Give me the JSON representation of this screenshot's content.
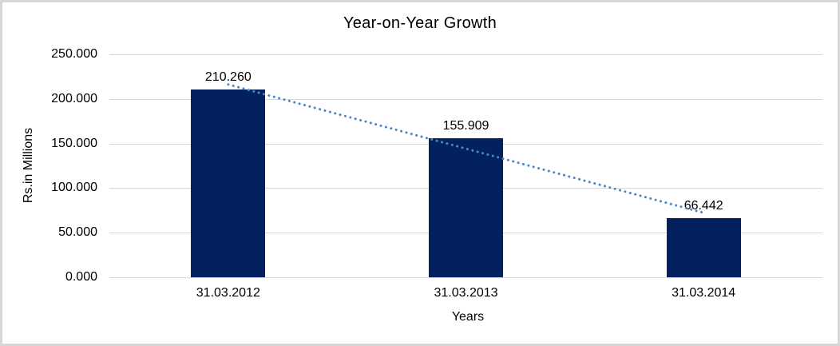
{
  "chart_data": {
    "type": "bar",
    "title": "Year-on-Year Growth",
    "xlabel": "Years",
    "ylabel": "Rs.in Millions",
    "categories": [
      "31.03.2012",
      "31.03.2013",
      "31.03.2014"
    ],
    "values": [
      210.26,
      155.909,
      66.442
    ],
    "data_labels": [
      "210.260",
      "155.909",
      "66.442"
    ],
    "y_ticks": [
      {
        "label": "250.000",
        "value": 250
      },
      {
        "label": "200.000",
        "value": 200
      },
      {
        "label": "150.000",
        "value": 150
      },
      {
        "label": "100.000",
        "value": 100
      },
      {
        "label": "50.000",
        "value": 50
      },
      {
        "label": "0.000",
        "value": 0
      }
    ],
    "ylim": [
      0,
      250
    ],
    "grid": true,
    "legend": false,
    "colors": {
      "bar": "#02215E",
      "trendline": "#4A86C8",
      "gridline": "#D9D9D9",
      "text": "#000000",
      "frame_border": "#D6D6D6"
    },
    "trendline": {
      "type": "linear",
      "style": "dotted",
      "start_value": 216.2,
      "end_value": 72.3
    }
  }
}
